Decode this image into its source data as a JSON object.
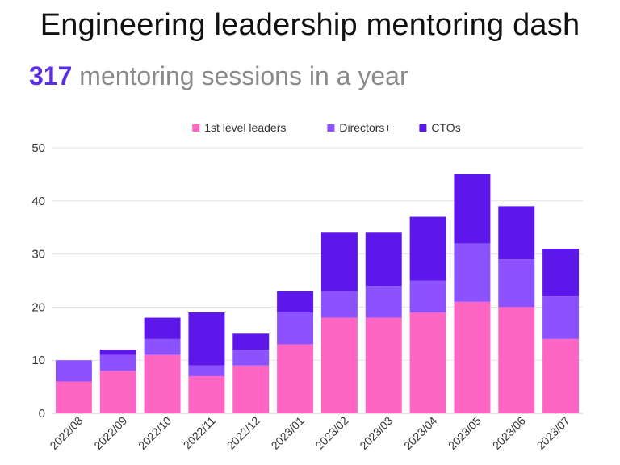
{
  "header": {
    "title": "Engineering leadership mentoring dash",
    "sessions_count": "317",
    "sessions_text": "mentoring sessions in a year"
  },
  "chart_data": {
    "type": "bar",
    "stacked": true,
    "categories": [
      "2022/08",
      "2022/09",
      "2022/10",
      "2022/11",
      "2022/12",
      "2023/01",
      "2023/02",
      "2023/03",
      "2023/04",
      "2023/05",
      "2023/06",
      "2023/07"
    ],
    "series": [
      {
        "name": "1st level leaders",
        "color": "#ff66c4",
        "values": [
          6,
          8,
          11,
          7,
          9,
          13,
          18,
          18,
          19,
          21,
          20,
          14
        ]
      },
      {
        "name": "Directors+",
        "color": "#8c52ff",
        "values": [
          4,
          3,
          3,
          2,
          3,
          6,
          5,
          6,
          6,
          11,
          9,
          8
        ]
      },
      {
        "name": "CTOs",
        "color": "#5e17eb",
        "values": [
          0,
          1,
          4,
          10,
          3,
          4,
          11,
          10,
          12,
          13,
          10,
          9
        ]
      }
    ],
    "ylim": [
      0,
      50
    ],
    "yticks": [
      0,
      10,
      20,
      30,
      40,
      50
    ],
    "grid": true,
    "legend_position": "top-center",
    "xlabel": "",
    "ylabel": ""
  }
}
